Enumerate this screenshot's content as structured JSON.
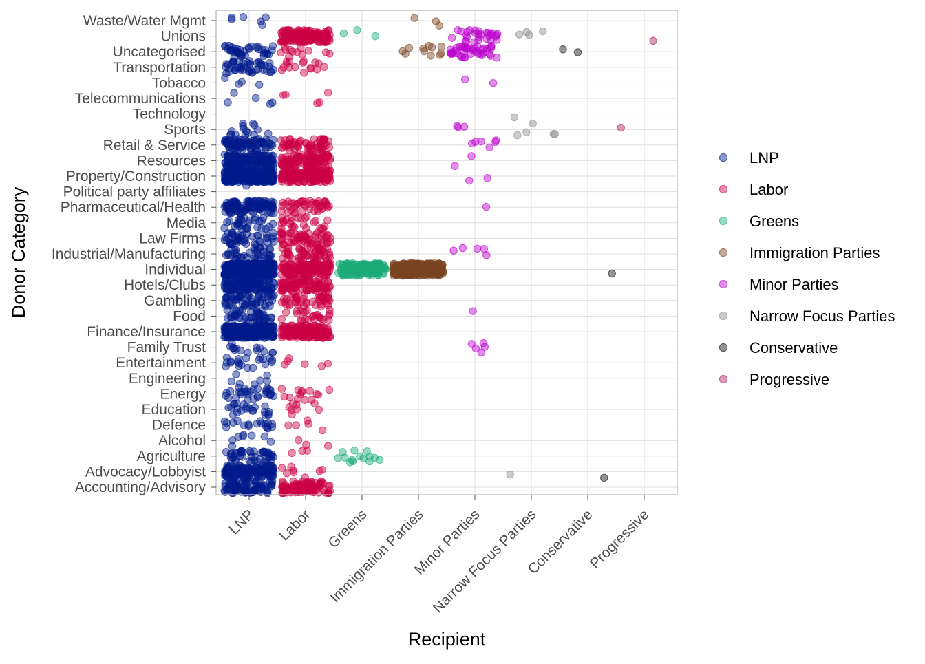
{
  "chart_data": {
    "type": "scatter",
    "subtype": "jitter strip plot",
    "title": "",
    "xlabel": "Recipient",
    "ylabel": "Donor Category",
    "legend_position": "right",
    "grid": true,
    "point_alpha": 0.45,
    "x_categories": [
      "LNP",
      "Labor",
      "Greens",
      "Immigration Parties",
      "Minor Parties",
      "Narrow Focus Parties",
      "Conservative",
      "Progressive"
    ],
    "y_categories": [
      "Accounting/Advisory",
      "Advocacy/Lobbyist",
      "Agriculture",
      "Alcohol",
      "Defence",
      "Education",
      "Energy",
      "Engineering",
      "Entertainment",
      "Family Trust",
      "Finance/Insurance",
      "Food",
      "Gambling",
      "Hotels/Clubs",
      "Individual",
      "Industrial/Manufacturing",
      "Law Firms",
      "Media",
      "Pharmaceutical/Health",
      "Political party affiliates",
      "Property/Construction",
      "Resources",
      "Retail & Service",
      "Sports",
      "Technology",
      "Telecommunications",
      "Tobacco",
      "Transportation",
      "Uncategorised",
      "Unions",
      "Waste/Water Mgmt"
    ],
    "series": [
      {
        "name": "LNP",
        "color": "#001a8c",
        "counts": {
          "Accounting/Advisory": 90,
          "Advocacy/Lobbyist": 140,
          "Agriculture": 45,
          "Alcohol": 8,
          "Defence": 18,
          "Education": 22,
          "Energy": 30,
          "Engineering": 7,
          "Entertainment": 20,
          "Family Trust": 14,
          "Finance/Insurance": 260,
          "Food": 45,
          "Gambling": 55,
          "Hotels/Clubs": 120,
          "Individual": 420,
          "Industrial/Manufacturing": 40,
          "Law Firms": 45,
          "Media": 30,
          "Pharmaceutical/Health": 110,
          "Political party affiliates": 1,
          "Property/Construction": 280,
          "Resources": 140,
          "Retail & Service": 80,
          "Sports": 15,
          "Telecommunications": 5,
          "Tobacco": 4,
          "Transportation": 45,
          "Uncategorised": 40,
          "Waste/Water Mgmt": 6
        }
      },
      {
        "name": "Labor",
        "color": "#cc0044",
        "counts": {
          "Accounting/Advisory": 100,
          "Advocacy/Lobbyist": 8,
          "Agriculture": 3,
          "Alcohol": 3,
          "Defence": 5,
          "Education": 8,
          "Energy": 14,
          "Entertainment": 6,
          "Finance/Insurance": 180,
          "Food": 25,
          "Gambling": 45,
          "Hotels/Clubs": 90,
          "Individual": 140,
          "Industrial/Manufacturing": 55,
          "Law Firms": 60,
          "Media": 25,
          "Pharmaceutical/Health": 45,
          "Property/Construction": 160,
          "Resources": 100,
          "Retail & Service": 60,
          "Telecommunications": 5,
          "Transportation": 16,
          "Uncategorised": 12,
          "Unions": 160
        }
      },
      {
        "name": "Greens",
        "color": "#1aaa78",
        "counts": {
          "Agriculture": 14,
          "Individual": 140,
          "Unions": 3
        }
      },
      {
        "name": "Immigration Parties",
        "color": "#7a4422",
        "counts": {
          "Individual": 340,
          "Uncategorised": 11,
          "Waste/Water Mgmt": 3
        }
      },
      {
        "name": "Minor Parties",
        "color": "#bb00cc",
        "counts": {
          "Family Trust": 5,
          "Food": 1,
          "Industrial/Manufacturing": 5,
          "Pharmaceutical/Health": 1,
          "Property/Construction": 2,
          "Resources": 2,
          "Retail & Service": 6,
          "Sports": 3,
          "Tobacco": 2,
          "Uncategorised": 40,
          "Unions": 28
        }
      },
      {
        "name": "Narrow Focus Parties",
        "color": "#8c8c8c",
        "counts": {
          "Advocacy/Lobbyist": 1,
          "Sports": 5,
          "Technology": 1,
          "Unions": 4
        }
      },
      {
        "name": "Conservative",
        "color": "#111111",
        "counts": {
          "Advocacy/Lobbyist": 1,
          "Individual": 1,
          "Uncategorised": 2
        }
      },
      {
        "name": "Progressive",
        "color": "#aa2266",
        "counts": {
          "Sports": 1,
          "Unions": 1
        }
      }
    ]
  }
}
